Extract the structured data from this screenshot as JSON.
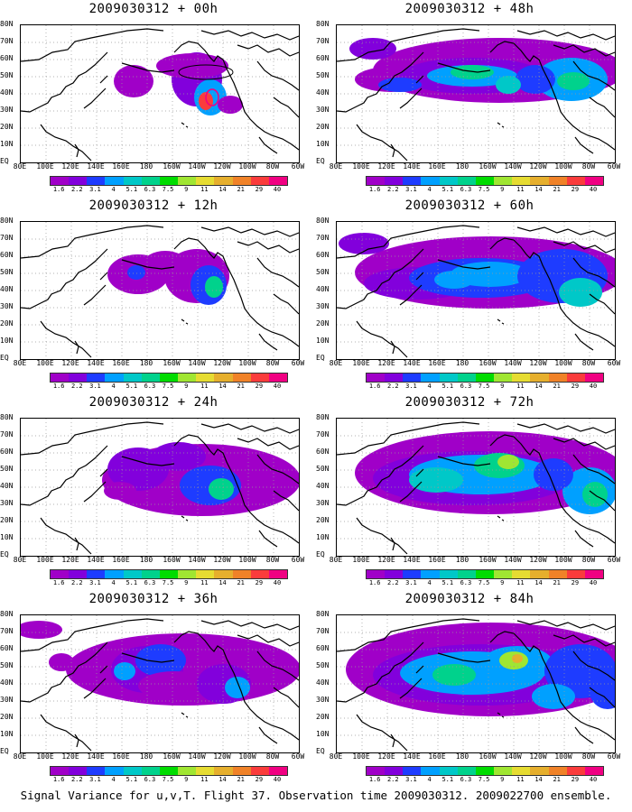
{
  "caption": "Signal Variance for u,v,T. Flight 37. Observation time 2009030312. 2009022700 ensemble.",
  "panels": [
    {
      "title": "2009030312 + 00h"
    },
    {
      "title": "2009030312 + 48h"
    },
    {
      "title": "2009030312 + 12h"
    },
    {
      "title": "2009030312 + 60h"
    },
    {
      "title": "2009030312 + 24h"
    },
    {
      "title": "2009030312 + 72h"
    },
    {
      "title": "2009030312 + 36h"
    },
    {
      "title": "2009030312 + 84h"
    }
  ],
  "lat_labels": [
    "80N",
    "70N",
    "60N",
    "50N",
    "40N",
    "30N",
    "20N",
    "10N",
    "EQ"
  ],
  "lon_labels": [
    "80E",
    "100E",
    "120E",
    "140E",
    "160E",
    "180",
    "160W",
    "140W",
    "120W",
    "100W",
    "80W",
    "60W"
  ],
  "colorbar": {
    "labels": [
      "1.6",
      "2.2",
      "3.1",
      "4",
      "5.1",
      "6.3",
      "7.5",
      "9",
      "11",
      "14",
      "21",
      "29",
      "40"
    ],
    "colors": [
      "#a000c8",
      "#8200dc",
      "#1e3cff",
      "#00a0ff",
      "#00c8c8",
      "#00d28c",
      "#00dc00",
      "#a0e632",
      "#e6dc32",
      "#e6af2d",
      "#f08228",
      "#fa3c3c",
      "#f00082"
    ]
  },
  "colors": {
    "land_outline": "#000000",
    "grid": "#999999"
  }
}
